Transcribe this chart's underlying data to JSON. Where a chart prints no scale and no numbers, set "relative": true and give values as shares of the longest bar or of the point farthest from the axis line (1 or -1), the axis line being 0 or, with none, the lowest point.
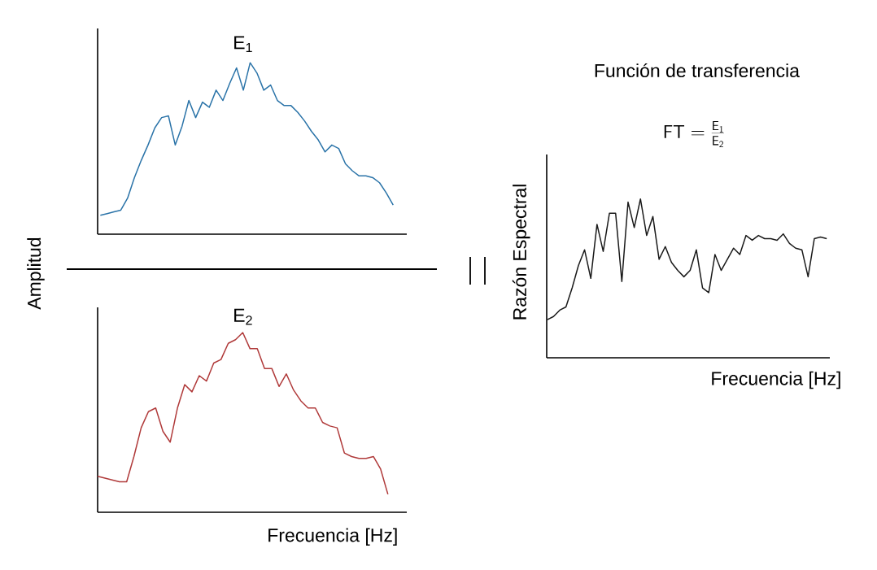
{
  "chart_data": [
    {
      "type": "line",
      "title": "E$_{1}$",
      "ylabel": "Amplitud",
      "relative": true,
      "categories": [
        null,
        null,
        null,
        null,
        null,
        null,
        null,
        null,
        null,
        null,
        null,
        null,
        null,
        null,
        null,
        null,
        null,
        null,
        null,
        null,
        null,
        null,
        null,
        null,
        null,
        null,
        null,
        null,
        null,
        null,
        null,
        null,
        null,
        null,
        null,
        null,
        null,
        null,
        null,
        null,
        null,
        null,
        null,
        null
      ],
      "series": [
        {
          "color": "#2a73a8",
          "values": [
            0.11,
            0.12,
            0.13,
            0.14,
            0.21,
            0.33,
            0.43,
            0.52,
            0.62,
            0.68,
            0.69,
            0.52,
            0.63,
            0.78,
            0.68,
            0.77,
            0.74,
            0.84,
            0.78,
            0.88,
            0.97,
            0.84,
            1.0,
            0.94,
            0.84,
            0.87,
            0.78,
            0.75,
            0.75,
            0.71,
            0.66,
            0.6,
            0.55,
            0.48,
            0.52,
            0.5,
            0.41,
            0.37,
            0.34,
            0.34,
            0.33,
            0.3,
            0.24,
            0.17
          ]
        }
      ]
    },
    {
      "type": "line",
      "title": "E$_{2}$",
      "xlabel": "Frecuencia [Hz]",
      "relative": true,
      "categories": [
        null,
        null,
        null,
        null,
        null,
        null,
        null,
        null,
        null,
        null,
        null,
        null,
        null,
        null,
        null,
        null,
        null,
        null,
        null,
        null,
        null,
        null,
        null,
        null,
        null,
        null,
        null,
        null,
        null,
        null,
        null,
        null,
        null,
        null,
        null,
        null,
        null,
        null,
        null,
        null,
        null
      ],
      "series": [
        {
          "color": "#b03a3a",
          "values": [
            0.2,
            0.19,
            0.18,
            0.17,
            0.17,
            0.31,
            0.47,
            0.56,
            0.58,
            0.45,
            0.39,
            0.58,
            0.71,
            0.67,
            0.76,
            0.73,
            0.83,
            0.85,
            0.94,
            0.96,
            1.0,
            0.91,
            0.91,
            0.8,
            0.8,
            0.7,
            0.77,
            0.68,
            0.62,
            0.58,
            0.58,
            0.5,
            0.48,
            0.47,
            0.33,
            0.31,
            0.3,
            0.3,
            0.31,
            0.24,
            0.1
          ]
        }
      ]
    },
    {
      "type": "line",
      "title": "Función de transferencia",
      "xlabel": "Frecuencia [Hz]",
      "ylabel": "Razón Espectral",
      "relative": true,
      "annotations": [
        "\\mathsf{FT} = \\frac{\\mathsf{E}_{\\mathsf{1}}}{\\mathsf{E}_{\\mathsf{2}}}"
      ],
      "categories": [
        null,
        null,
        null,
        null,
        null,
        null,
        null,
        null,
        null,
        null,
        null,
        null,
        null,
        null,
        null,
        null,
        null,
        null,
        null,
        null,
        null,
        null,
        null,
        null,
        null,
        null,
        null,
        null,
        null,
        null,
        null,
        null,
        null,
        null,
        null,
        null,
        null,
        null,
        null,
        null,
        null,
        null,
        null,
        null,
        null,
        null
      ],
      "series": [
        {
          "color": "#1a1a1a",
          "values": [
            0.24,
            0.26,
            0.3,
            0.32,
            0.44,
            0.58,
            0.68,
            0.5,
            0.84,
            0.67,
            0.91,
            0.91,
            0.48,
            0.98,
            0.82,
            1.0,
            0.77,
            0.89,
            0.62,
            0.7,
            0.6,
            0.55,
            0.51,
            0.55,
            0.68,
            0.44,
            0.41,
            0.65,
            0.55,
            0.62,
            0.69,
            0.65,
            0.77,
            0.74,
            0.77,
            0.75,
            0.75,
            0.74,
            0.78,
            0.72,
            0.69,
            0.68,
            0.51,
            0.75,
            0.76,
            0.75
          ]
        }
      ]
    }
  ]
}
